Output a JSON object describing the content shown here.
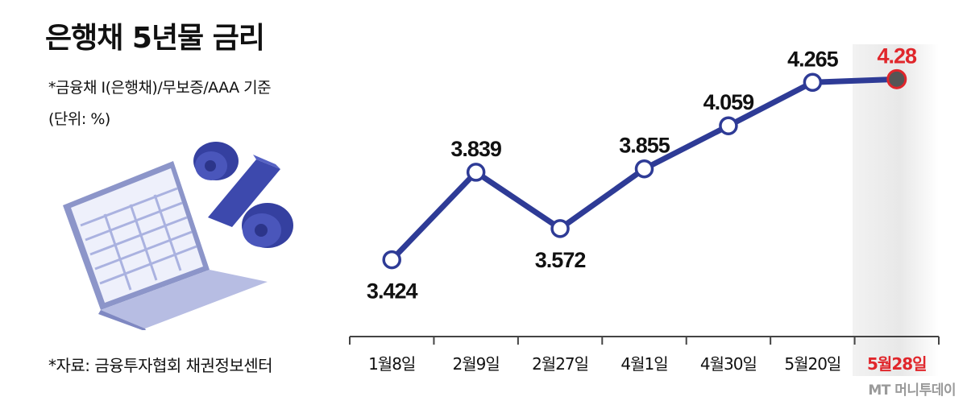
{
  "header": {
    "title": "은행채 5년물 금리",
    "subtitle": "*금융채 Ⅰ(은행채)/무보증/AAA 기준",
    "unit": "(단위: %)"
  },
  "footer": {
    "source": "*자료: 금융투자협회 채권정보센터",
    "watermark": "MT 머니투데이"
  },
  "illustration": {
    "icon": "laptop-spreadsheet-percent-icon"
  },
  "colors": {
    "line": "#2e3b96",
    "highlight": "#e0262b",
    "text": "#111111"
  },
  "chart_data": {
    "type": "line",
    "title": "은행채 5년물 금리",
    "categories": [
      "1월8일",
      "2월9일",
      "2월27일",
      "4월1일",
      "4월30일",
      "5월20일",
      "5월28일"
    ],
    "values": [
      3.424,
      3.839,
      3.572,
      3.855,
      4.059,
      4.265,
      4.28
    ],
    "value_labels": [
      "3.424",
      "3.839",
      "3.572",
      "3.855",
      "4.059",
      "4.265",
      "4.28"
    ],
    "highlight_index": 6,
    "ylabel": "",
    "unit": "%",
    "ylim": [
      3.35,
      4.35
    ],
    "grid": false,
    "legend": "none"
  }
}
